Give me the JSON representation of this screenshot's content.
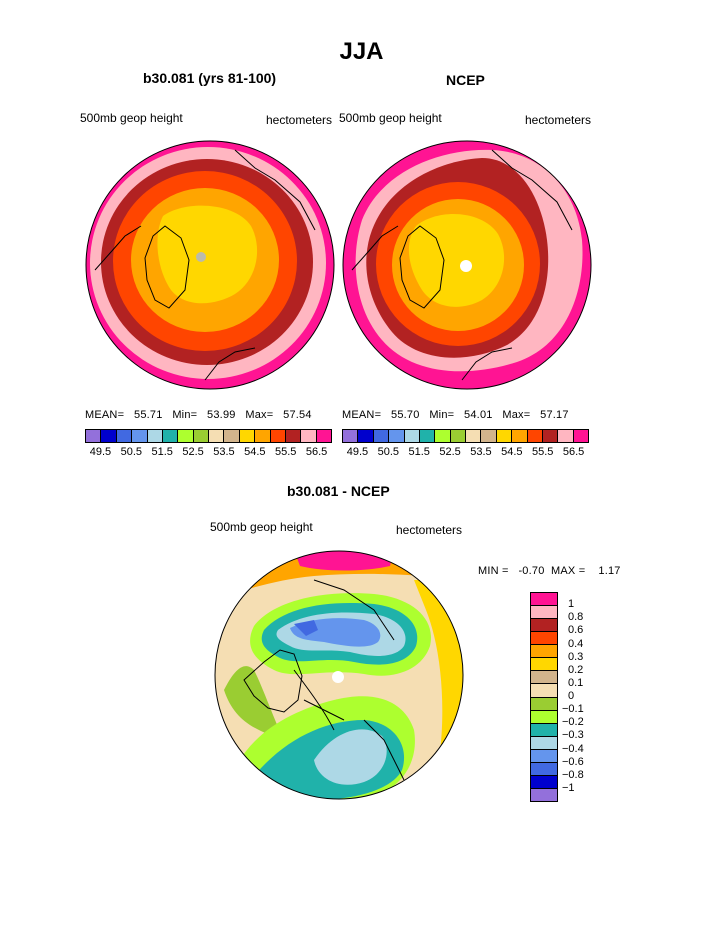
{
  "title": "JJA",
  "panels": {
    "left": {
      "title": "b30.081 (yrs 81-100)",
      "field": "500mb geop height",
      "units": "hectometers",
      "stats": {
        "mean_label": "MEAN=",
        "mean": "55.71",
        "min_label": "Min=",
        "min": "53.99",
        "max_label": "Max=",
        "max": "57.54"
      }
    },
    "right": {
      "title": "NCEP",
      "field": "500mb geop height",
      "units": "hectometers",
      "stats": {
        "mean_label": "MEAN=",
        "mean": "55.70",
        "min_label": "Min=",
        "min": "54.01",
        "max_label": "Max=",
        "max": "57.17"
      }
    },
    "diff": {
      "title": "b30.081 - NCEP",
      "field": "500mb geop height",
      "units": "hectometers",
      "stats": {
        "min_label": "MIN =",
        "min": "-0.70",
        "max_label": "MAX =",
        "max": "1.17"
      }
    }
  },
  "colorbar_top": {
    "colors": [
      "#9370db",
      "#0000cd",
      "#4169e1",
      "#6495ed",
      "#add8e6",
      "#20b2aa",
      "#adff2f",
      "#9acd32",
      "#f5deb3",
      "#d2b48c",
      "#ffd700",
      "#ffa500",
      "#ff4500",
      "#b22222",
      "#ffb6c1",
      "#ff1493"
    ],
    "labels": [
      "49.5",
      "50.5",
      "51.5",
      "52.5",
      "53.5",
      "54.5",
      "55.5",
      "56.5"
    ]
  },
  "colorbar_diff": {
    "colors": [
      "#ff1493",
      "#ffb6c1",
      "#b22222",
      "#ff4500",
      "#ffa500",
      "#ffd700",
      "#d2b48c",
      "#f5deb3",
      "#9acd32",
      "#adff2f",
      "#20b2aa",
      "#add8e6",
      "#6495ed",
      "#4169e1",
      "#0000cd",
      "#9370db"
    ],
    "labels": [
      "1",
      "0.8",
      "0.6",
      "0.4",
      "0.3",
      "0.2",
      "0.1",
      "0",
      "−0.1",
      "−0.2",
      "−0.3",
      "−0.4",
      "−0.6",
      "−0.8",
      "−1"
    ]
  }
}
